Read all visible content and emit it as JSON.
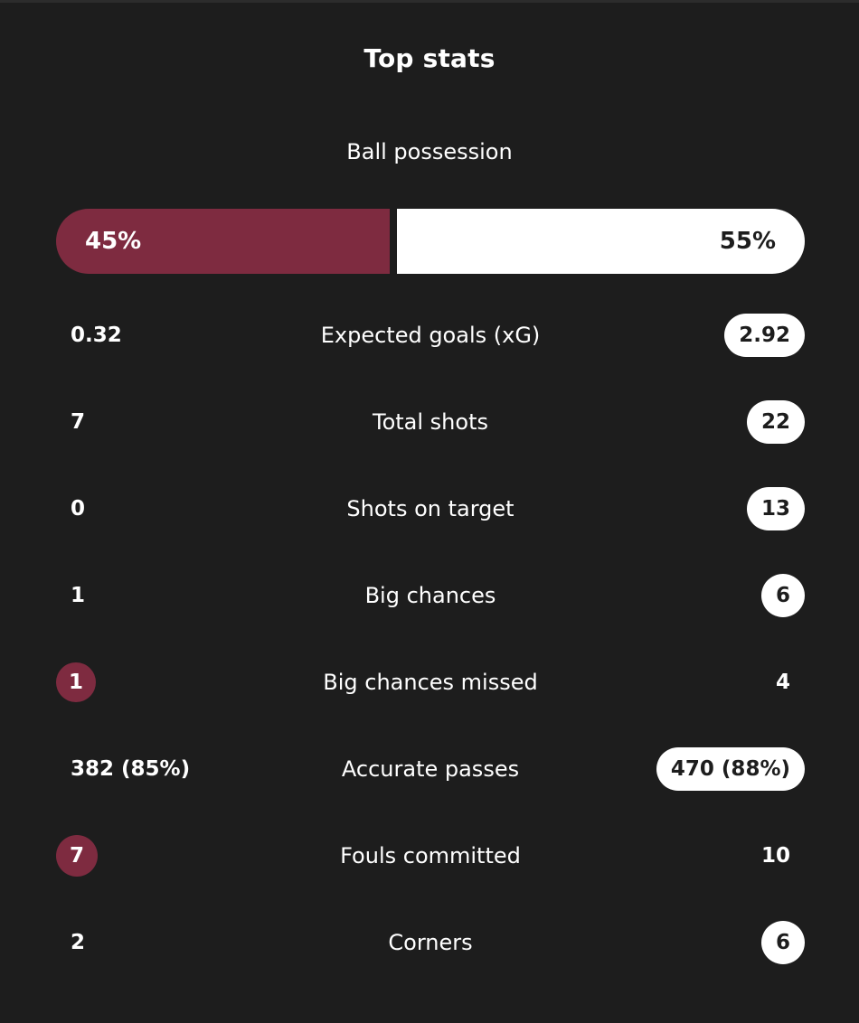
{
  "title": "Top stats",
  "possession": {
    "label": "Ball possession",
    "home": "45%",
    "away": "55%",
    "home_fraction": 0.45
  },
  "colors": {
    "background": "#1d1d1d",
    "home_accent": "#7e2b40",
    "away_accent": "#ffffff"
  },
  "stats": [
    {
      "label": "Expected goals (xG)",
      "home": "0.32",
      "away": "2.92",
      "highlight": "away"
    },
    {
      "label": "Total shots",
      "home": "7",
      "away": "22",
      "highlight": "away"
    },
    {
      "label": "Shots on target",
      "home": "0",
      "away": "13",
      "highlight": "away"
    },
    {
      "label": "Big chances",
      "home": "1",
      "away": "6",
      "highlight": "away"
    },
    {
      "label": "Big chances missed",
      "home": "1",
      "away": "4",
      "highlight": "home"
    },
    {
      "label": "Accurate passes",
      "home": "382 (85%)",
      "away": "470 (88%)",
      "highlight": "away"
    },
    {
      "label": "Fouls committed",
      "home": "7",
      "away": "10",
      "highlight": "home"
    },
    {
      "label": "Corners",
      "home": "2",
      "away": "6",
      "highlight": "away"
    }
  ]
}
